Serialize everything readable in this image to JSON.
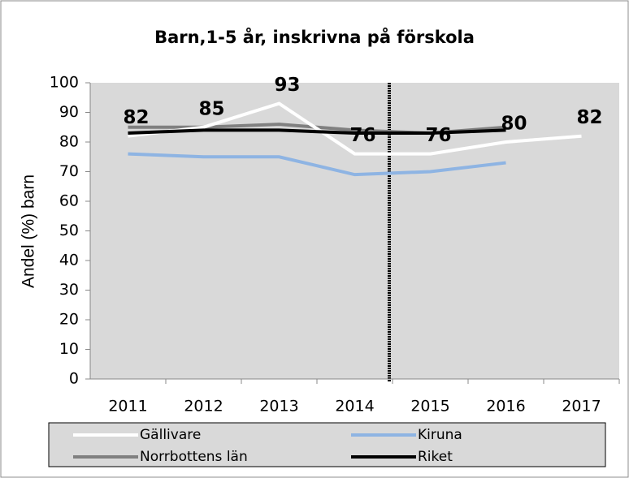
{
  "chart_data": {
    "type": "line",
    "title": "Barn,1-5 år, inskrivna  på förskola",
    "y_label": "Andel (%) barn",
    "categories": [
      "2011",
      "2012",
      "2013",
      "2014",
      "2015",
      "2016",
      "2017"
    ],
    "series": [
      {
        "name": "Gällivare",
        "color": "#ffffff",
        "values": [
          82,
          85,
          93,
          76,
          76,
          80,
          82
        ],
        "data_labels": true
      },
      {
        "name": "Kiruna",
        "color": "#8eb4e3",
        "values": [
          76,
          75,
          75,
          69,
          70,
          73,
          null
        ]
      },
      {
        "name": "Norrbottens län",
        "color": "#808080",
        "values": [
          85,
          85,
          86,
          84,
          83,
          85,
          null
        ]
      },
      {
        "name": "Riket",
        "color": "#000000",
        "values": [
          83,
          84,
          84,
          83,
          83,
          84,
          null
        ]
      }
    ],
    "ylim": [
      0,
      100
    ],
    "yticks": [
      0,
      10,
      20,
      30,
      40,
      50,
      60,
      70,
      80,
      90,
      100
    ]
  }
}
